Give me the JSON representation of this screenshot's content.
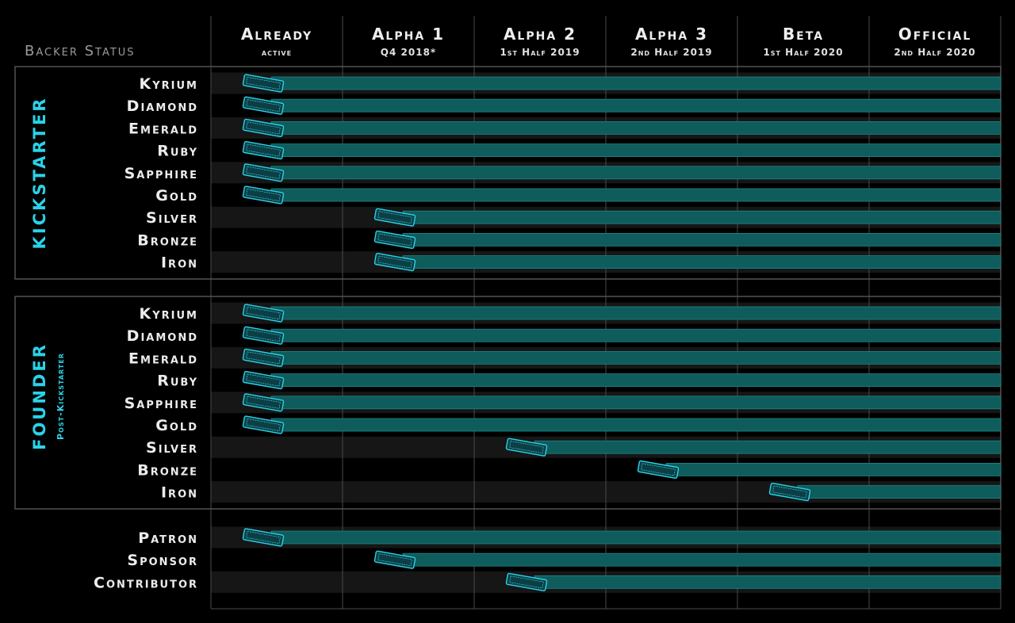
{
  "corner_label": "Backer Status",
  "colors": {
    "background": "#000000",
    "stripe": "#161616",
    "bar_fill": "#0f5c5c",
    "bar_edge": "#1f8585",
    "accent": "#2ad2e8",
    "grid": "#4a4a4a",
    "box": "#585858"
  },
  "icon": "access-card-icon",
  "sections": [
    {
      "label": "Kickstarter",
      "sublabel": ""
    },
    {
      "label": "Founder",
      "sublabel": "Post-Kickstarter"
    },
    {
      "label": "",
      "sublabel": ""
    }
  ],
  "chart_data": {
    "type": "table",
    "title": "",
    "columns": [
      {
        "title": "Already",
        "subtitle": "active"
      },
      {
        "title": "Alpha 1",
        "subtitle": "Q4 2018*"
      },
      {
        "title": "Alpha 2",
        "subtitle": "1st Half 2019"
      },
      {
        "title": "Alpha 3",
        "subtitle": "2nd Half 2019"
      },
      {
        "title": "Beta",
        "subtitle": "1st Half 2020"
      },
      {
        "title": "Official",
        "subtitle": "2nd Half 2020"
      }
    ],
    "rows": [
      {
        "section": 0,
        "tier": "Kyrium",
        "access_from": "Already active"
      },
      {
        "section": 0,
        "tier": "Diamond",
        "access_from": "Already active"
      },
      {
        "section": 0,
        "tier": "Emerald",
        "access_from": "Already active"
      },
      {
        "section": 0,
        "tier": "Ruby",
        "access_from": "Already active"
      },
      {
        "section": 0,
        "tier": "Sapphire",
        "access_from": "Already active"
      },
      {
        "section": 0,
        "tier": "Gold",
        "access_from": "Already active"
      },
      {
        "section": 0,
        "tier": "Silver",
        "access_from": "Alpha 1"
      },
      {
        "section": 0,
        "tier": "Bronze",
        "access_from": "Alpha 1"
      },
      {
        "section": 0,
        "tier": "Iron",
        "access_from": "Alpha 1"
      },
      {
        "section": 1,
        "tier": "Kyrium",
        "access_from": "Already active"
      },
      {
        "section": 1,
        "tier": "Diamond",
        "access_from": "Already active"
      },
      {
        "section": 1,
        "tier": "Emerald",
        "access_from": "Already active"
      },
      {
        "section": 1,
        "tier": "Ruby",
        "access_from": "Already active"
      },
      {
        "section": 1,
        "tier": "Sapphire",
        "access_from": "Already active"
      },
      {
        "section": 1,
        "tier": "Gold",
        "access_from": "Already active"
      },
      {
        "section": 1,
        "tier": "Silver",
        "access_from": "Alpha 2"
      },
      {
        "section": 1,
        "tier": "Bronze",
        "access_from": "Alpha 3"
      },
      {
        "section": 1,
        "tier": "Iron",
        "access_from": "Beta"
      },
      {
        "section": 2,
        "tier": "Patron",
        "access_from": "Already active"
      },
      {
        "section": 2,
        "tier": "Sponsor",
        "access_from": "Alpha 1"
      },
      {
        "section": 2,
        "tier": "Contributor",
        "access_from": "Alpha 2"
      }
    ]
  }
}
